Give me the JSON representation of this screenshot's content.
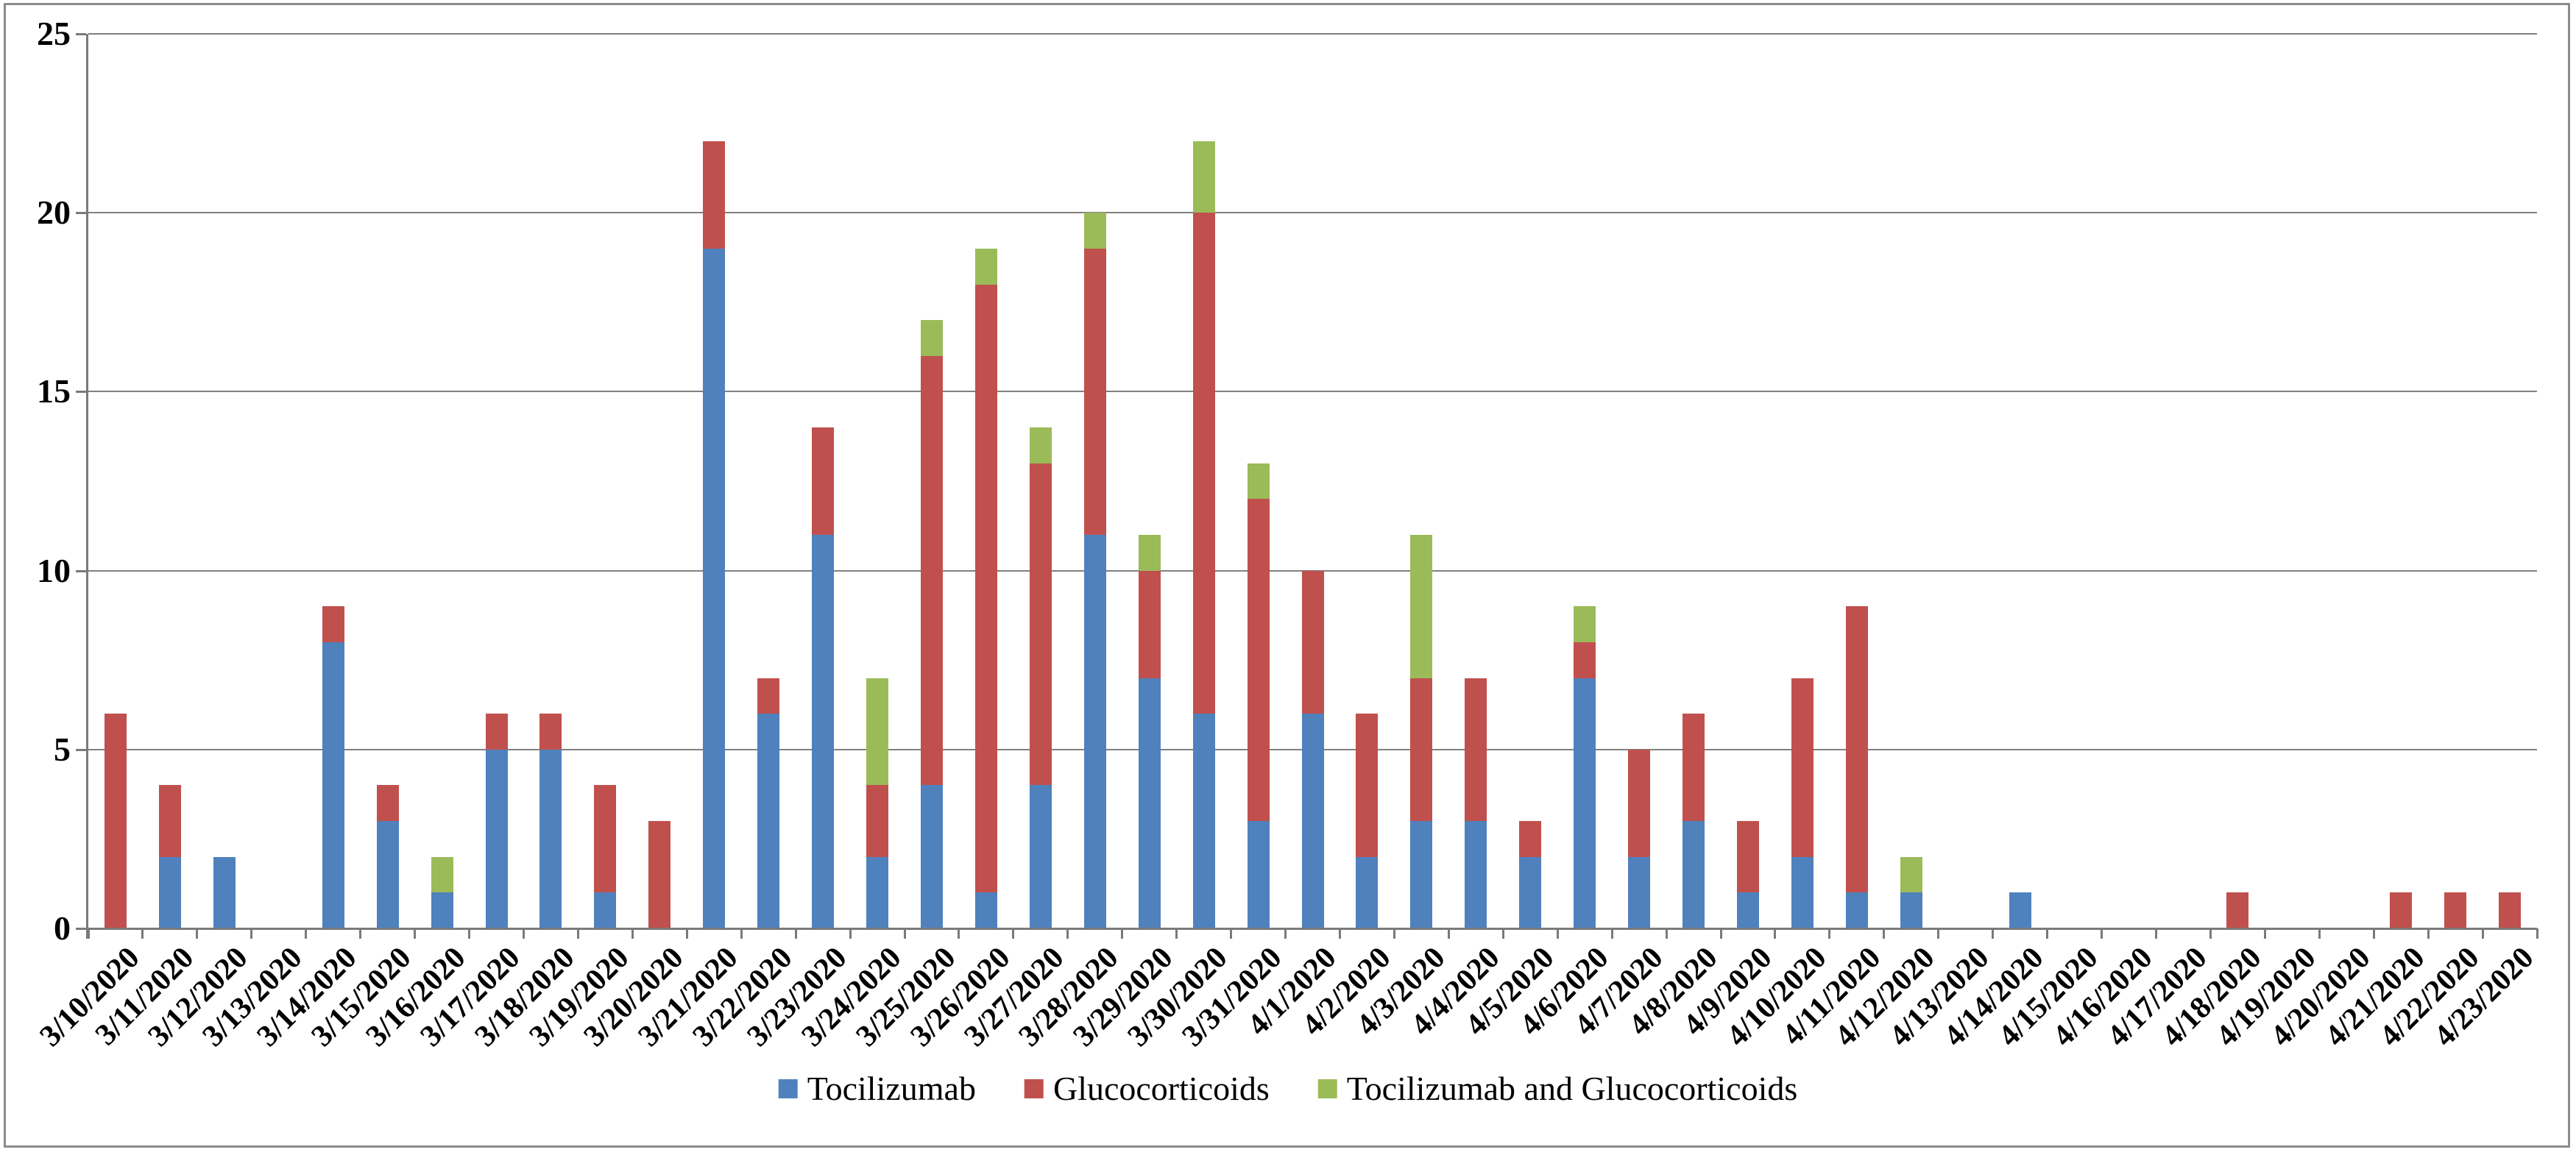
{
  "chart_data": {
    "type": "bar",
    "stacked": true,
    "title": "",
    "xlabel": "",
    "ylabel": "",
    "ylim": [
      0,
      25
    ],
    "yticks": [
      0,
      5,
      10,
      15,
      20,
      25
    ],
    "grid": true,
    "legend_position": "bottom",
    "axis_color": "#7A7A7A",
    "gridline_color": "#808080",
    "categories": [
      "3/10/2020",
      "3/11/2020",
      "3/12/2020",
      "3/13/2020",
      "3/14/2020",
      "3/15/2020",
      "3/16/2020",
      "3/17/2020",
      "3/18/2020",
      "3/19/2020",
      "3/20/2020",
      "3/21/2020",
      "3/22/2020",
      "3/23/2020",
      "3/24/2020",
      "3/25/2020",
      "3/26/2020",
      "3/27/2020",
      "3/28/2020",
      "3/29/2020",
      "3/30/2020",
      "3/31/2020",
      "4/1/2020",
      "4/2/2020",
      "4/3/2020",
      "4/4/2020",
      "4/5/2020",
      "4/6/2020",
      "4/7/2020",
      "4/8/2020",
      "4/9/2020",
      "4/10/2020",
      "4/11/2020",
      "4/12/2020",
      "4/13/2020",
      "4/14/2020",
      "4/15/2020",
      "4/16/2020",
      "4/17/2020",
      "4/18/2020",
      "4/19/2020",
      "4/20/2020",
      "4/21/2020",
      "4/22/2020",
      "4/23/2020"
    ],
    "series": [
      {
        "name": "Tocilizumab",
        "color": "#4F81BD",
        "values": [
          0,
          2,
          2,
          0,
          8,
          3,
          1,
          5,
          5,
          1,
          0,
          19,
          6,
          11,
          2,
          4,
          1,
          4,
          11,
          7,
          6,
          3,
          6,
          2,
          3,
          3,
          2,
          7,
          2,
          3,
          1,
          2,
          1,
          1,
          0,
          1,
          0,
          0,
          0,
          0,
          0,
          0,
          0,
          0,
          0
        ]
      },
      {
        "name": "Glucocorticoids",
        "color": "#C0504D",
        "values": [
          6,
          2,
          0,
          0,
          1,
          1,
          0,
          1,
          1,
          3,
          3,
          3,
          1,
          3,
          2,
          12,
          17,
          9,
          8,
          3,
          14,
          9,
          4,
          4,
          4,
          4,
          1,
          1,
          3,
          3,
          2,
          5,
          8,
          0,
          0,
          0,
          0,
          0,
          0,
          1,
          0,
          0,
          1,
          1,
          1
        ]
      },
      {
        "name": "Tocilizumab and Glucocorticoids",
        "color": "#9BBB59",
        "values": [
          0,
          0,
          0,
          0,
          0,
          0,
          1,
          0,
          0,
          0,
          0,
          0,
          0,
          0,
          3,
          1,
          1,
          1,
          1,
          1,
          2,
          1,
          0,
          0,
          4,
          0,
          0,
          1,
          0,
          0,
          0,
          0,
          0,
          1,
          0,
          0,
          0,
          0,
          0,
          0,
          0,
          0,
          0,
          0,
          0
        ]
      }
    ]
  }
}
